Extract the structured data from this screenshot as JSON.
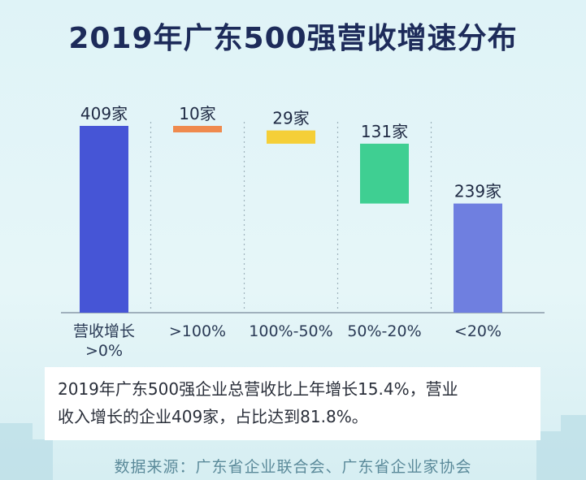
{
  "title": "2019年广东500强营收增速分布",
  "chart_data": {
    "type": "bar",
    "title": "2019年广东500强营收增速分布",
    "categories": [
      "营收增长\n>0%",
      ">100%",
      "100%-50%",
      "50%-20%",
      "<20%"
    ],
    "values": [
      409,
      10,
      29,
      131,
      239
    ],
    "value_labels": [
      "409家",
      "10家",
      "29家",
      "131家",
      "239家"
    ],
    "waterfall": true,
    "colors": [
      "#4655d6",
      "#ef8a4e",
      "#f5cf38",
      "#3fcf92",
      "#6f7fe0"
    ],
    "ylim": [
      0,
      409
    ],
    "grid": false
  },
  "note": {
    "line1": "2019年广东500强企业总营收比上年增长15.4%，营业",
    "line2": "收入增长的企业409家，占比达到81.8%。"
  },
  "source": "数据来源：广东省企业联合会、广东省企业家协会"
}
